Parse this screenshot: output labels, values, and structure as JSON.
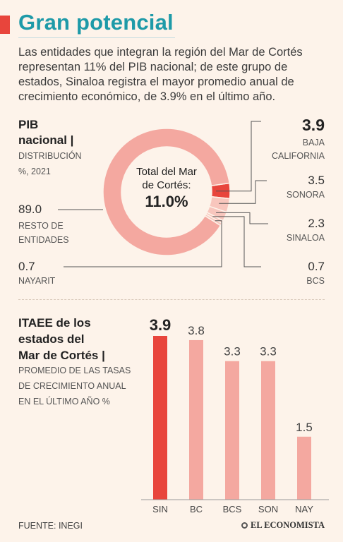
{
  "title": "Gran potencial",
  "intro": "Las entidades que integran la región del Mar de Cortés representan 11% del PIB nacional; de este grupo de estados, Sinaloa registra el mayor promedio anual de crecimiento económico, de 3.9% en el último año.",
  "pib": {
    "heading_line1": "PIB",
    "heading_line2": "nacional |",
    "sub_line1": "DISTRIBUCIÓN",
    "sub_line2": "%, 2021",
    "center_line1": "Total del Mar",
    "center_line2": "de Cortés:",
    "center_value": "11.0%"
  },
  "itaee": {
    "heading_line1": "ITAEE de los",
    "heading_line2": "estados del",
    "heading_line3": "Mar de Cortés |",
    "sub_line1": "PROMEDIO DE LAS TASAS",
    "sub_line2": "DE CRECIMIENTO ANUAL",
    "sub_line3": "EN EL ÚLTIMO AÑO %"
  },
  "footer": {
    "source": "FUENTE: INEGI",
    "logo": "EL ECONOMISTA"
  },
  "colors": {
    "title": "#1e9aa8",
    "accent": "#e8453c",
    "main": "#f4a8a0",
    "slice_light": "#f8c6bd",
    "background": "#fdf3ea"
  },
  "chart_data": [
    {
      "type": "pie",
      "labels": [
        "RESTO DE ENTIDADES",
        "BAJA CALIFORNIA",
        "SONORA",
        "SINALOA",
        "BCS",
        "NAYARIT"
      ],
      "values": [
        89.0,
        3.9,
        3.5,
        2.3,
        0.7,
        0.7
      ],
      "value_labels": [
        "89.0",
        "3.9",
        "3.5",
        "2.3",
        "0.7",
        "0.7"
      ],
      "highlight": "BAJA CALIFORNIA"
    },
    {
      "type": "bar",
      "categories": [
        "SIN",
        "BC",
        "BCS",
        "SON",
        "NAY"
      ],
      "values": [
        3.9,
        3.8,
        3.3,
        3.3,
        1.5
      ],
      "value_labels": [
        "3.9",
        "3.8",
        "3.3",
        "3.3",
        "1.5"
      ],
      "highlight": "SIN",
      "ylim": [
        0,
        3.9
      ]
    }
  ]
}
